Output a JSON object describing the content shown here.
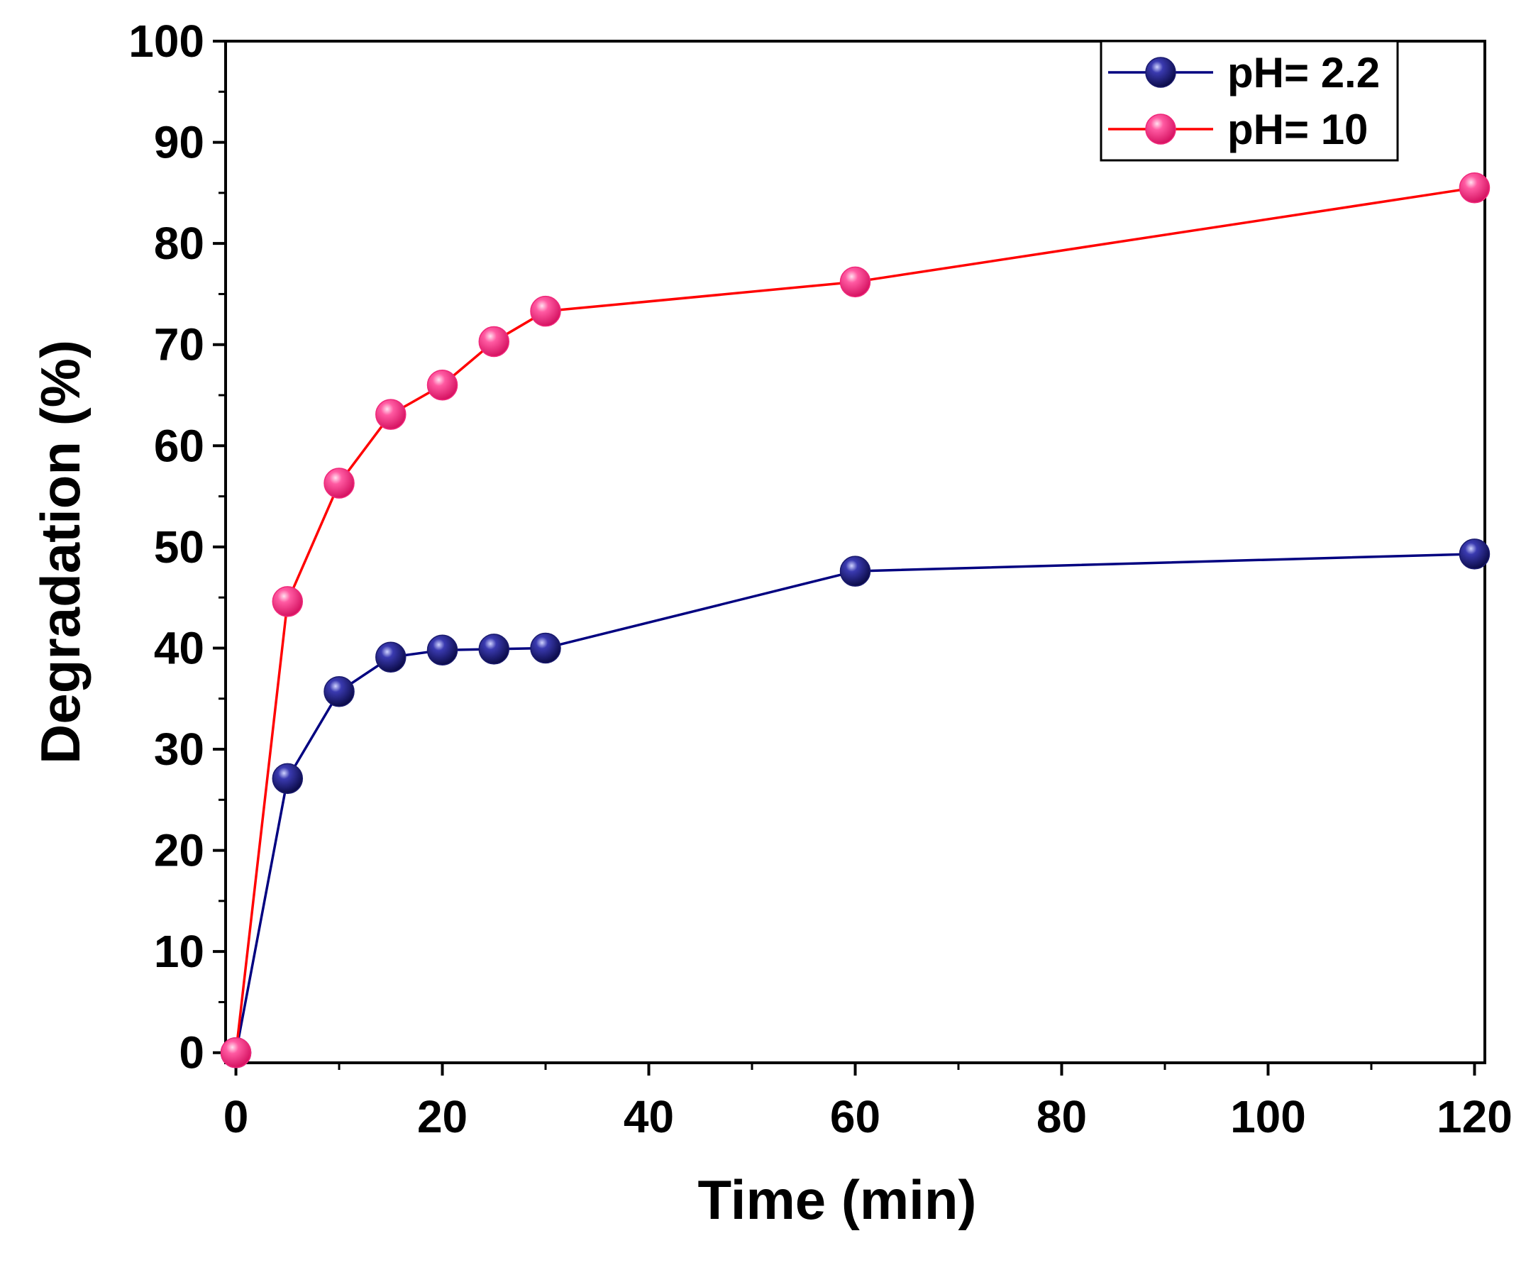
{
  "chart_data": {
    "type": "line",
    "title": "",
    "xlabel": "Time (min)",
    "ylabel": "Degradation (%)",
    "xlim": [
      -1,
      121
    ],
    "ylim": [
      -1,
      100
    ],
    "x_ticks": [
      0,
      20,
      40,
      60,
      80,
      100,
      120
    ],
    "x_tick_labels": [
      "0",
      "20",
      "40",
      "60",
      "80",
      "100",
      "120"
    ],
    "y_ticks": [
      0,
      10,
      20,
      30,
      40,
      50,
      60,
      70,
      80,
      90,
      100
    ],
    "y_tick_labels": [
      "0",
      "10",
      "20",
      "30",
      "40",
      "50",
      "60",
      "70",
      "80",
      "90",
      "100"
    ],
    "grid": false,
    "legend_position": "top-right",
    "series": [
      {
        "name": "pH= 2.2",
        "color": "#000080",
        "marker_color": "#1a1a6e",
        "x": [
          0,
          5,
          10,
          15,
          20,
          25,
          30,
          60,
          120
        ],
        "y": [
          0,
          27.1,
          35.7,
          39.1,
          39.8,
          39.9,
          40.0,
          47.6,
          49.3
        ]
      },
      {
        "name": "pH= 10",
        "color": "#ff0000",
        "marker_color": "#f0287a",
        "x": [
          0,
          5,
          10,
          15,
          20,
          25,
          30,
          60,
          120
        ],
        "y": [
          0,
          44.6,
          56.3,
          63.1,
          66.0,
          70.3,
          73.3,
          76.2,
          85.5
        ]
      }
    ]
  }
}
